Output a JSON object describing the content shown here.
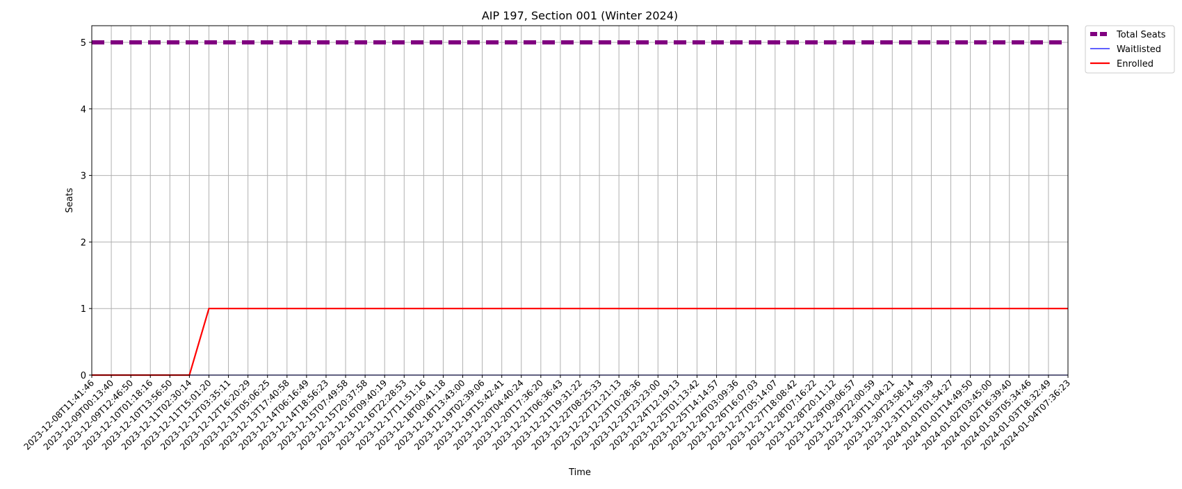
{
  "chart_data": {
    "type": "line",
    "title": "AIP 197, Section 001 (Winter 2024)",
    "xlabel": "Time",
    "ylabel": "Seats",
    "ylim": [
      0,
      5.25
    ],
    "yticks": [
      0,
      1,
      2,
      3,
      4,
      5
    ],
    "grid": true,
    "legend_position": "outside upper-right",
    "x": [
      "2023-12-08T11:41:46",
      "2023-12-09T00:13:40",
      "2023-12-09T12:46:50",
      "2023-12-10T01:18:16",
      "2023-12-10T13:56:50",
      "2023-12-11T02:30:14",
      "2023-12-11T15:01:20",
      "2023-12-12T03:35:11",
      "2023-12-12T16:20:29",
      "2023-12-13T05:06:25",
      "2023-12-13T17:40:58",
      "2023-12-14T06:16:49",
      "2023-12-14T18:56:23",
      "2023-12-15T07:49:58",
      "2023-12-15T20:37:58",
      "2023-12-16T09:40:19",
      "2023-12-16T22:28:53",
      "2023-12-17T11:51:16",
      "2023-12-18T00:41:18",
      "2023-12-18T13:43:00",
      "2023-12-19T02:39:06",
      "2023-12-19T15:42:41",
      "2023-12-20T04:40:24",
      "2023-12-20T17:36:20",
      "2023-12-21T06:36:43",
      "2023-12-21T19:31:22",
      "2023-12-22T08:25:33",
      "2023-12-22T21:21:13",
      "2023-12-23T10:28:36",
      "2023-12-23T23:23:00",
      "2023-12-24T12:19:13",
      "2023-12-25T01:13:42",
      "2023-12-25T14:14:57",
      "2023-12-26T03:09:36",
      "2023-12-26T16:07:03",
      "2023-12-27T05:14:07",
      "2023-12-27T18:08:42",
      "2023-12-28T07:16:22",
      "2023-12-28T20:11:12",
      "2023-12-29T09:06:57",
      "2023-12-29T22:00:59",
      "2023-12-30T11:04:21",
      "2023-12-30T23:58:14",
      "2023-12-31T12:59:39",
      "2024-01-01T01:54:27",
      "2024-01-01T14:49:50",
      "2024-01-02T03:45:00",
      "2024-01-02T16:39:40",
      "2024-01-03T05:34:46",
      "2024-01-03T18:32:49",
      "2024-01-04T07:36:23"
    ],
    "series": [
      {
        "name": "Total Seats",
        "color": "#800080",
        "style": "dashed-thick",
        "values": [
          5,
          5,
          5,
          5,
          5,
          5,
          5,
          5,
          5,
          5,
          5,
          5,
          5,
          5,
          5,
          5,
          5,
          5,
          5,
          5,
          5,
          5,
          5,
          5,
          5,
          5,
          5,
          5,
          5,
          5,
          5,
          5,
          5,
          5,
          5,
          5,
          5,
          5,
          5,
          5,
          5,
          5,
          5,
          5,
          5,
          5,
          5,
          5,
          5,
          5,
          5
        ]
      },
      {
        "name": "Waitlisted",
        "color": "#0000ff",
        "style": "thin",
        "values": [
          0,
          0,
          0,
          0,
          0,
          0,
          0,
          0,
          0,
          0,
          0,
          0,
          0,
          0,
          0,
          0,
          0,
          0,
          0,
          0,
          0,
          0,
          0,
          0,
          0,
          0,
          0,
          0,
          0,
          0,
          0,
          0,
          0,
          0,
          0,
          0,
          0,
          0,
          0,
          0,
          0,
          0,
          0,
          0,
          0,
          0,
          0,
          0,
          0,
          0,
          0
        ]
      },
      {
        "name": "Enrolled",
        "color": "#ff0000",
        "style": "solid",
        "values": [
          0,
          0,
          0,
          0,
          0,
          0,
          1,
          1,
          1,
          1,
          1,
          1,
          1,
          1,
          1,
          1,
          1,
          1,
          1,
          1,
          1,
          1,
          1,
          1,
          1,
          1,
          1,
          1,
          1,
          1,
          1,
          1,
          1,
          1,
          1,
          1,
          1,
          1,
          1,
          1,
          1,
          1,
          1,
          1,
          1,
          1,
          1,
          1,
          1,
          1,
          1
        ]
      }
    ]
  }
}
